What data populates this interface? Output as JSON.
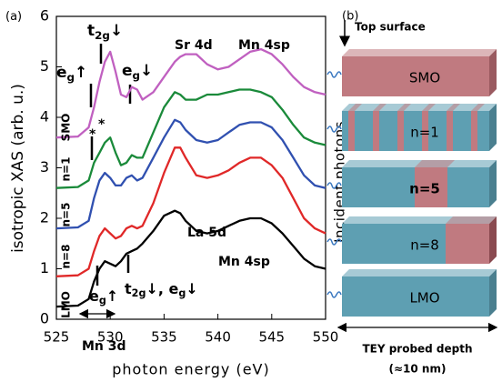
{
  "chart_data": {
    "type": "line",
    "x_label": "photon energy (eV)",
    "y_label": "isotropic XAS (arb. u.)",
    "x": [
      525,
      527,
      528,
      528.5,
      529,
      529.5,
      530,
      530.5,
      531,
      531.5,
      532,
      532.5,
      533,
      534,
      535,
      536,
      536.5,
      537,
      538,
      539,
      540,
      541,
      542,
      543,
      544,
      545,
      546,
      547,
      548,
      549,
      550
    ],
    "series": [
      {
        "name": "SMO",
        "color": "#c060c0",
        "values": [
          3.6,
          3.62,
          3.8,
          4.2,
          4.7,
          5.1,
          5.3,
          4.9,
          4.45,
          4.4,
          4.6,
          4.55,
          4.35,
          4.5,
          4.8,
          5.1,
          5.2,
          5.25,
          5.25,
          5.05,
          4.95,
          5.0,
          5.15,
          5.3,
          5.35,
          5.25,
          5.05,
          4.8,
          4.6,
          4.5,
          4.45
        ]
      },
      {
        "name": "n=1",
        "color": "#1a8a3a",
        "values": [
          2.6,
          2.62,
          2.75,
          3.1,
          3.3,
          3.5,
          3.6,
          3.3,
          3.05,
          3.1,
          3.25,
          3.2,
          3.2,
          3.7,
          4.2,
          4.5,
          4.45,
          4.35,
          4.35,
          4.45,
          4.45,
          4.5,
          4.55,
          4.55,
          4.5,
          4.4,
          4.15,
          3.85,
          3.6,
          3.5,
          3.45
        ]
      },
      {
        "name": "n=5",
        "color": "#3050b0",
        "values": [
          1.8,
          1.82,
          1.95,
          2.4,
          2.75,
          2.9,
          2.8,
          2.65,
          2.65,
          2.8,
          2.85,
          2.75,
          2.8,
          3.2,
          3.6,
          3.95,
          3.9,
          3.75,
          3.55,
          3.5,
          3.55,
          3.7,
          3.85,
          3.9,
          3.9,
          3.8,
          3.55,
          3.2,
          2.85,
          2.65,
          2.6
        ]
      },
      {
        "name": "n=8",
        "color": "#e02828",
        "values": [
          0.85,
          0.87,
          1.0,
          1.35,
          1.65,
          1.8,
          1.7,
          1.6,
          1.65,
          1.8,
          1.85,
          1.8,
          1.85,
          2.3,
          2.9,
          3.4,
          3.4,
          3.2,
          2.85,
          2.8,
          2.85,
          2.95,
          3.1,
          3.2,
          3.2,
          3.05,
          2.8,
          2.4,
          2.0,
          1.8,
          1.7
        ]
      },
      {
        "name": "LMO",
        "color": "#000000",
        "values": [
          0.25,
          0.27,
          0.4,
          0.75,
          1.0,
          1.15,
          1.1,
          1.05,
          1.15,
          1.3,
          1.35,
          1.4,
          1.5,
          1.75,
          2.05,
          2.15,
          2.1,
          1.95,
          1.75,
          1.7,
          1.75,
          1.85,
          1.95,
          2.0,
          2.0,
          1.9,
          1.7,
          1.45,
          1.2,
          1.05,
          1.0
        ]
      }
    ],
    "xlim": [
      525,
      550
    ],
    "xticks": [
      525,
      530,
      535,
      540,
      545,
      550
    ],
    "ylim": [
      0,
      6
    ],
    "yticks": [
      0,
      1,
      2,
      3,
      4,
      5,
      6
    ],
    "annotations": [
      [
        "t",
        "2g",
        "↓"
      ],
      [
        "e",
        "g",
        "↑"
      ],
      [
        "e",
        "g",
        "↓"
      ],
      [
        "Sr 4d"
      ],
      [
        "Mn 4sp"
      ],
      [
        "*"
      ],
      [
        "*"
      ],
      [
        "La 5d"
      ],
      [
        "e",
        "g",
        "↑"
      ],
      [
        "t",
        "2g",
        "↓",
        ", e",
        "g",
        "↓"
      ],
      [
        "Mn 4sp"
      ],
      [
        "Mn 3d"
      ],
      [
        "(a)"
      ]
    ]
  },
  "diagram": {
    "label": "(b)",
    "top_surface": "Top surface",
    "incident": "Incident photons",
    "layers": [
      "SMO",
      "n=1",
      "n=5",
      "n=8",
      "LMO"
    ],
    "depth": "TEY probed depth",
    "depth_value": "(≈10 nm)"
  }
}
